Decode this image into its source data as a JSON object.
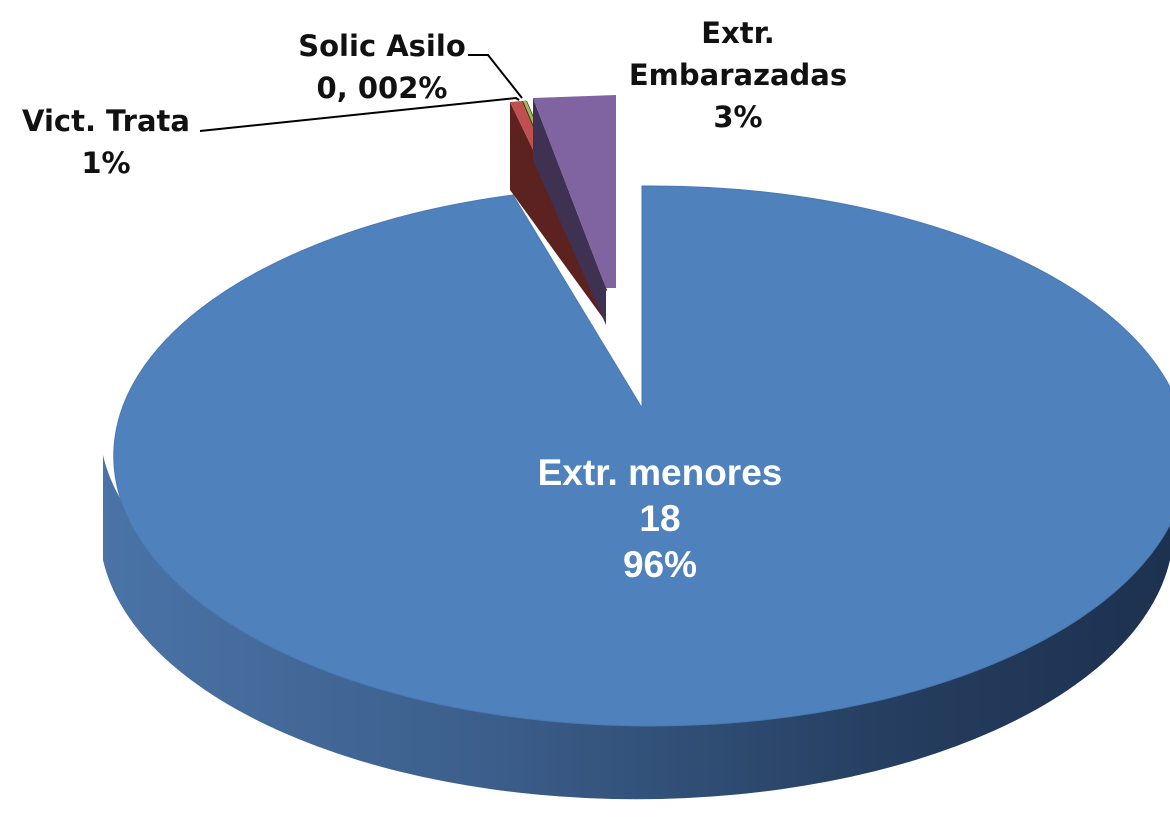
{
  "chart_data": {
    "type": "pie",
    "style": "3d-exploded",
    "slices": [
      {
        "name": "Extr. menores",
        "count": "18",
        "percent_label": "96%",
        "value": 96,
        "color": "#4f81bd",
        "side_color": "#2e4d73",
        "text_color": "#ffffff"
      },
      {
        "name": "Vict. Trata",
        "count": "",
        "percent_label": "1%",
        "value": 1,
        "color": "#c0504d",
        "side_color": "#5c2220",
        "text_color": "#111111"
      },
      {
        "name": "Solic Asilo",
        "count": "",
        "percent_label": "0, 002%",
        "value": 0.002,
        "color": "#9bbb59",
        "side_color": "#56682f",
        "text_color": "#111111"
      },
      {
        "name": "Extr. Embarazadas",
        "count": "",
        "percent_label": "3%",
        "value": 3,
        "color": "#8064a2",
        "side_color": "#3f3152",
        "text_color": "#111111"
      }
    ],
    "legend": "none",
    "data_labels": "name-value-percent"
  }
}
